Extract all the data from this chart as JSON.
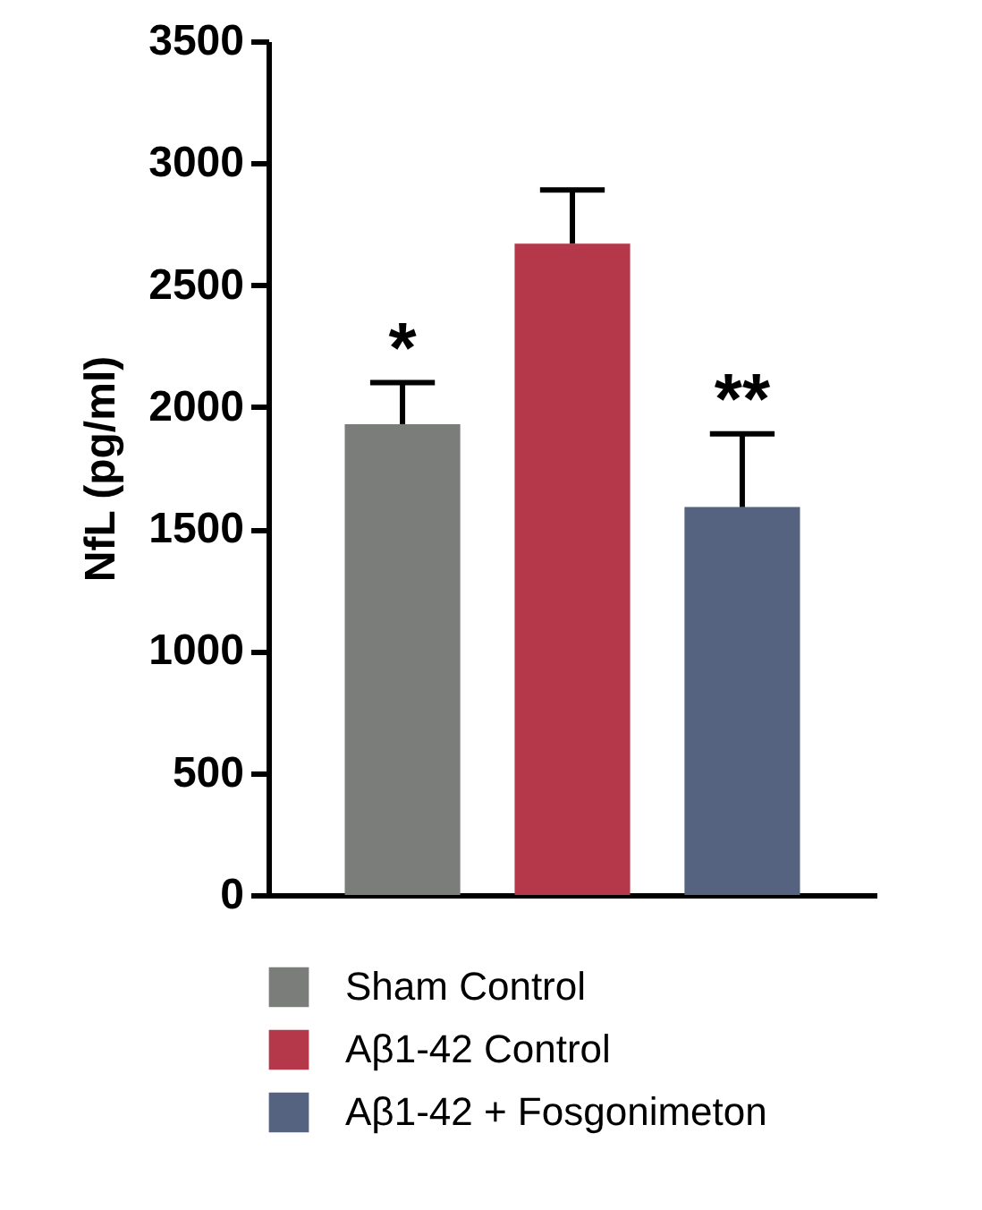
{
  "chart_data": {
    "type": "bar",
    "ylabel": "NfL (pg/ml)",
    "categories": [
      null,
      null,
      null
    ],
    "series": [
      {
        "name": "Sham Control",
        "color": "#7b7d7a",
        "values": [
          1930,
          null,
          null
        ],
        "errors": [
          [
            1930,
            2100
          ],
          null,
          null
        ]
      },
      {
        "name": "Aβ1-42 Control",
        "color": "#b5384a",
        "values": [
          null,
          2670,
          null
        ],
        "errors": [
          null,
          [
            2670,
            2890
          ],
          null
        ]
      },
      {
        "name": "Aβ1-42 + Fosgonimeton",
        "color": "#556280",
        "values": [
          null,
          null,
          1590
        ],
        "errors": [
          null,
          null,
          [
            1590,
            1890
          ]
        ]
      }
    ],
    "ylim": [
      0,
      3500
    ],
    "yticks": [
      0,
      500,
      1000,
      1500,
      2000,
      2500,
      3000,
      3500
    ],
    "annotations": [
      {
        "text": "*",
        "y": 2100
      },
      {
        "text": "**",
        "y": 1890
      }
    ],
    "legend": "bottom",
    "tick_labels": "y",
    "grid": false
  }
}
